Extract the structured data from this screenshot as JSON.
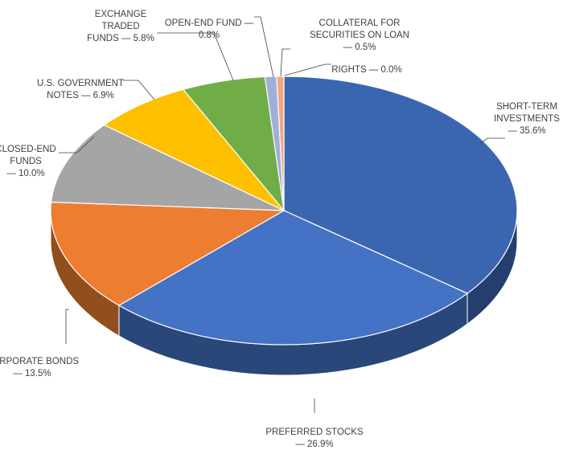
{
  "chart_data": {
    "type": "pie",
    "title": "",
    "legend": "none",
    "slices": [
      {
        "name": "short-term-investments",
        "label_lines": [
          "SHORT-TERM",
          "INVESTMENTS",
          "— 35.6%"
        ],
        "value": 35.6,
        "color": "#3A66B0"
      },
      {
        "name": "preferred-stocks",
        "label_lines": [
          "PREFERRED STOCKS",
          "— 26.9%"
        ],
        "value": 26.9,
        "color": "#4472C4"
      },
      {
        "name": "corporate-bonds",
        "label_lines": [
          "CORPORATE BONDS",
          "— 13.5%"
        ],
        "value": 13.5,
        "color": "#ED7D31"
      },
      {
        "name": "closed-end-funds",
        "label_lines": [
          "CLOSED-END",
          "FUNDS",
          "— 10.0%"
        ],
        "value": 10.0,
        "color": "#A5A5A5"
      },
      {
        "name": "us-government-notes",
        "label_lines": [
          "U.S. GOVERNMENT",
          "NOTES — 6.9%"
        ],
        "value": 6.9,
        "color": "#FFC000"
      },
      {
        "name": "exchange-traded-funds",
        "label_lines": [
          "EXCHANGE",
          "TRADED",
          "FUNDS — 5.8%"
        ],
        "value": 5.8,
        "color": "#70AD47"
      },
      {
        "name": "open-end-fund",
        "label_lines": [
          "OPEN-END FUND —",
          "0.8%"
        ],
        "value": 0.8,
        "color": "#9EB0D8"
      },
      {
        "name": "collateral-for-securities-on-loan",
        "label_lines": [
          "COLLATERAL FOR",
          "SECURITIES ON LOAN",
          "— 0.5%"
        ],
        "value": 0.5,
        "color": "#F4A582"
      },
      {
        "name": "rights",
        "label_lines": [
          "RIGHTS — 0.0%"
        ],
        "value": 0.0,
        "color": "#C55A11"
      }
    ]
  }
}
